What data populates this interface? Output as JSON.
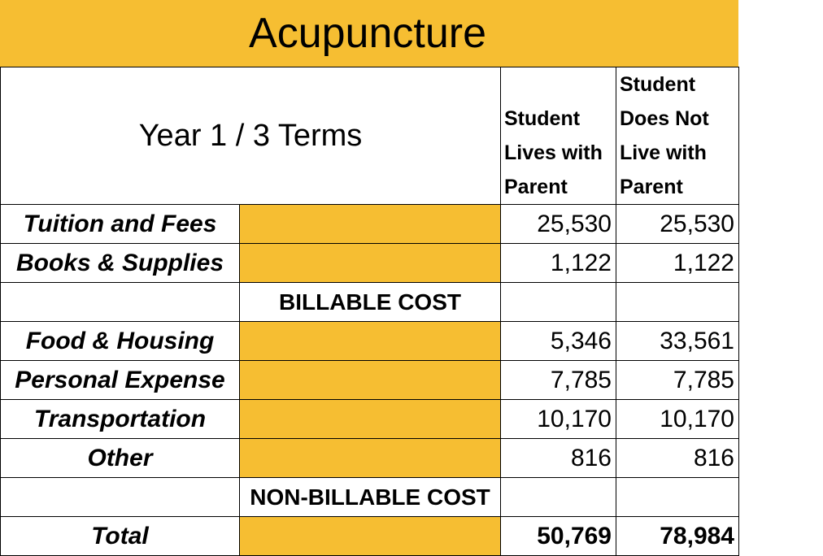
{
  "title": "Acupuncture",
  "header": {
    "period": "Year 1 / 3 Terms",
    "col1": "Student Lives with Parent",
    "col2": "Student Does Not Live with Parent"
  },
  "rows": [
    {
      "label": "Tuition and Fees",
      "col1": "25,530",
      "col2": "25,530"
    },
    {
      "label": "Books & Supplies",
      "col1": "1,122",
      "col2": "1,122"
    }
  ],
  "billable_label": "BILLABLE COST",
  "rows2": [
    {
      "label": "Food & Housing",
      "col1": "5,346",
      "col2": "33,561"
    },
    {
      "label": "Personal Expense",
      "col1": "7,785",
      "col2": "7,785"
    },
    {
      "label": "Transportation",
      "col1": "10,170",
      "col2": "10,170"
    },
    {
      "label": "Other",
      "col1": "816",
      "col2": "816"
    }
  ],
  "nonbillable_label": "NON-BILLABLE COST",
  "total": {
    "label": "Total",
    "col1": "50,769",
    "col2": "78,984"
  }
}
